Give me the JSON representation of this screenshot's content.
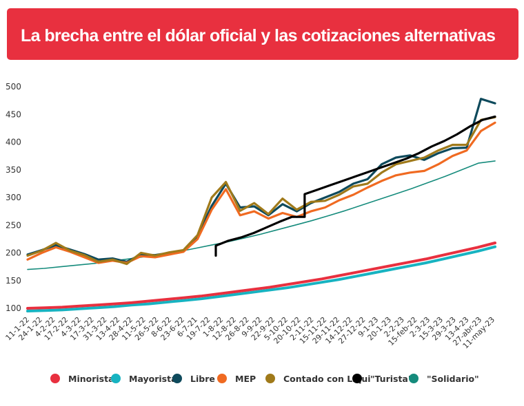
{
  "title": "La brecha entre el dólar oficial y las cotizaciones alternativas",
  "chart_data": {
    "type": "line",
    "title": "La brecha entre el dólar oficial y las cotizaciones alternativas",
    "xlabel": "",
    "ylabel": "",
    "ylim": [
      95,
      500
    ],
    "yticks": [
      100,
      150,
      200,
      250,
      300,
      350,
      400,
      450,
      500
    ],
    "xticks": [
      "11-1-22",
      "24-1-22",
      "4-2-22",
      "17-2-22",
      "4-3-22",
      "17-3-22",
      "31-3-22",
      "13-4-22",
      "28-4-22",
      "11-5-22",
      "26-5-22",
      "8-6-22",
      "23-6-22",
      "6-7-21",
      "19-7-22",
      "1-8-22",
      "12-8-22",
      "26-8-22",
      "9-9-22",
      "22-9-22",
      "5-10-22",
      "20-10-22",
      "2-11-22",
      "15-11-22",
      "29-11-22",
      "14-12-22",
      "27-12-22",
      "9-1-23",
      "20-1-23",
      "2-2-23",
      "15-feb-22",
      "2-3-23",
      "15-3-23",
      "29-3-23",
      "13-4-23",
      "27-abr-23",
      "11-may-23"
    ],
    "grid": false,
    "legend_position": "bottom",
    "series": [
      {
        "name": "Minorista",
        "color": "#e8303f",
        "values": [
          100,
          101,
          102,
          104,
          106,
          108,
          110,
          113,
          116,
          119,
          122,
          126,
          130,
          134,
          138,
          143,
          148,
          153,
          159,
          165,
          171,
          177,
          183,
          189,
          196,
          203,
          210,
          218
        ]
      },
      {
        "name": "Mayorista",
        "color": "#17b3c1",
        "values": [
          95,
          96,
          97,
          99,
          101,
          103,
          106,
          108,
          111,
          114,
          117,
          121,
          125,
          129,
          133,
          137,
          142,
          147,
          152,
          158,
          164,
          170,
          176,
          182,
          189,
          196,
          203,
          211
        ]
      },
      {
        "name": "Libre",
        "color": "#0e4a5c",
        "values": [
          197,
          205,
          214,
          206,
          198,
          188,
          190,
          184,
          197,
          196,
          200,
          204,
          230,
          285,
          325,
          282,
          284,
          268,
          288,
          275,
          290,
          300,
          310,
          325,
          333,
          360,
          372,
          376,
          368,
          380,
          389,
          390,
          478,
          470
        ]
      },
      {
        "name": "MEP",
        "color": "#f06a21",
        "values": [
          188,
          200,
          210,
          202,
          192,
          182,
          186,
          182,
          194,
          192,
          197,
          202,
          225,
          278,
          315,
          268,
          275,
          262,
          272,
          265,
          275,
          282,
          295,
          305,
          318,
          330,
          340,
          345,
          348,
          360,
          375,
          385,
          420,
          435
        ]
      },
      {
        "name": "Contado con Liqui",
        "color": "#a07a1a",
        "values": [
          195,
          204,
          218,
          204,
          196,
          184,
          188,
          180,
          200,
          195,
          201,
          205,
          232,
          300,
          328,
          276,
          290,
          270,
          298,
          278,
          292,
          294,
          305,
          320,
          325,
          345,
          360,
          366,
          372,
          385,
          395,
          395,
          440,
          445
        ]
      },
      {
        "name": "\"Turista\"",
        "color": "#000000",
        "values": [
          213,
          222,
          228,
          236,
          246,
          256,
          265,
          306,
          314,
          322,
          330,
          338,
          346,
          354,
          362,
          370,
          380,
          392,
          402,
          414,
          428,
          440,
          446
        ]
      },
      {
        "name": "\"Solidario\"",
        "color": "#158b7c",
        "values": [
          170,
          172,
          175,
          178,
          181,
          185,
          189,
          193,
          197,
          202,
          208,
          214,
          220,
          227,
          234,
          242,
          250,
          258,
          267,
          276,
          286,
          296,
          306,
          316,
          327,
          338,
          350,
          362,
          366
        ]
      }
    ]
  }
}
